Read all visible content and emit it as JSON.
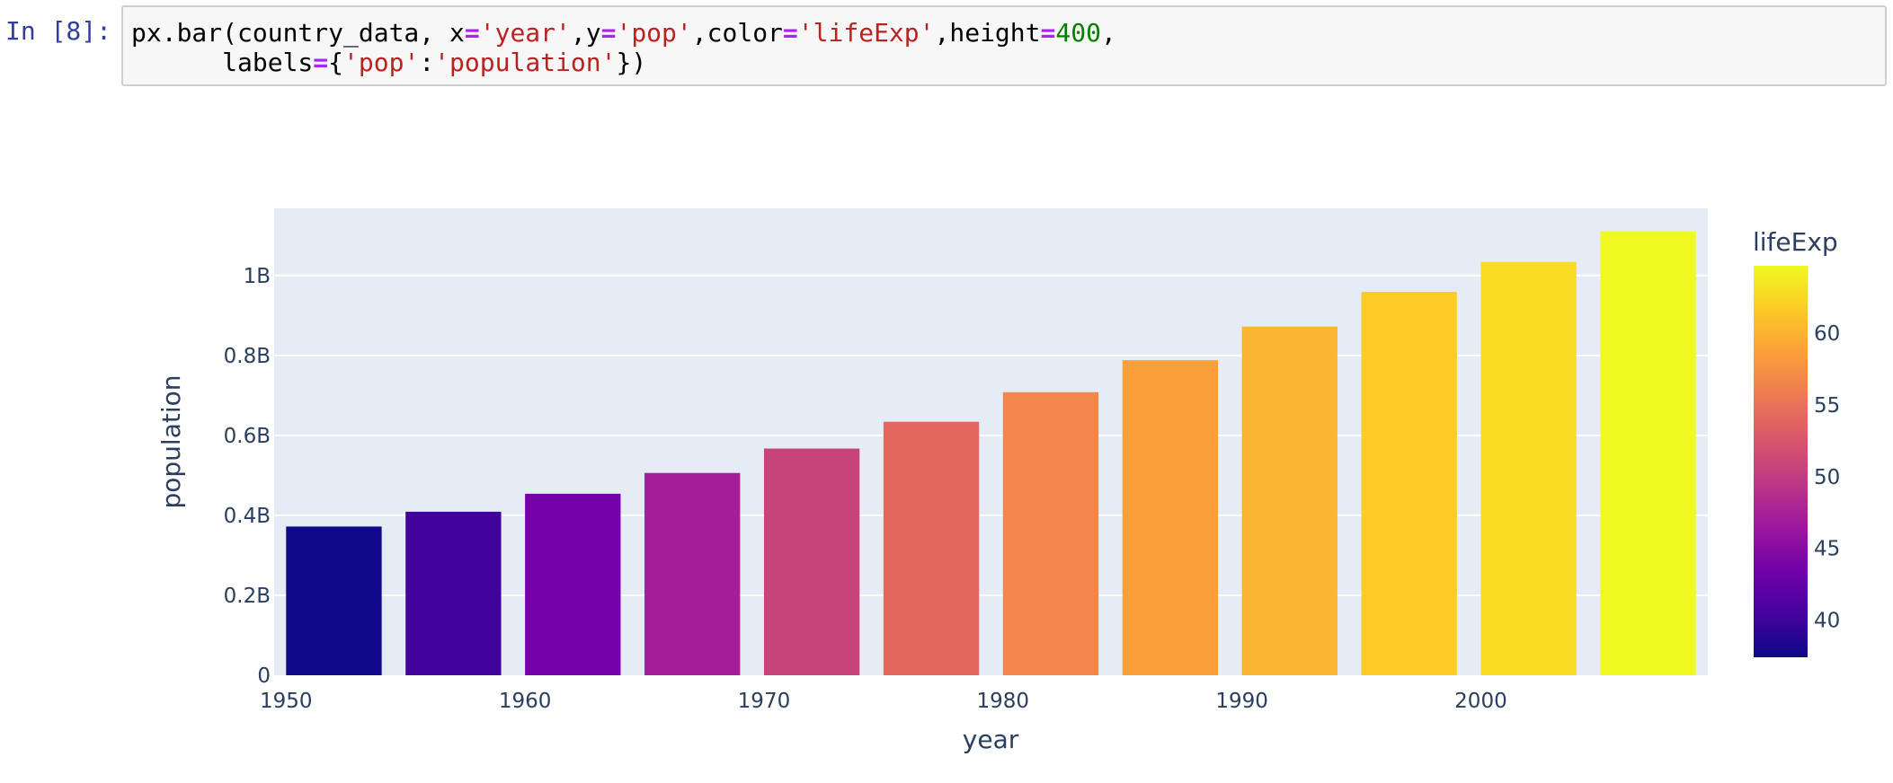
{
  "cell": {
    "prompt": "In [8]:",
    "code_line1": [
      {
        "t": "px.bar(country_data, x",
        "c": "plain"
      },
      {
        "t": "=",
        "c": "op"
      },
      {
        "t": "'year'",
        "c": "str"
      },
      {
        "t": ",y",
        "c": "plain"
      },
      {
        "t": "=",
        "c": "op"
      },
      {
        "t": "'pop'",
        "c": "str"
      },
      {
        "t": ",color",
        "c": "plain"
      },
      {
        "t": "=",
        "c": "op"
      },
      {
        "t": "'lifeExp'",
        "c": "str"
      },
      {
        "t": ",height",
        "c": "plain"
      },
      {
        "t": "=",
        "c": "op"
      },
      {
        "t": "400",
        "c": "num"
      },
      {
        "t": ",",
        "c": "plain"
      }
    ],
    "code_line2": [
      {
        "t": "      labels",
        "c": "plain"
      },
      {
        "t": "=",
        "c": "op"
      },
      {
        "t": "{",
        "c": "plain"
      },
      {
        "t": "'pop'",
        "c": "str"
      },
      {
        "t": ":",
        "c": "plain"
      },
      {
        "t": "'population'",
        "c": "str"
      },
      {
        "t": "})",
        "c": "plain"
      }
    ]
  },
  "chart_data": {
    "type": "bar",
    "xlabel": "year",
    "ylabel": "population",
    "color_label": "lifeExp",
    "x": [
      1952,
      1957,
      1962,
      1967,
      1972,
      1977,
      1982,
      1987,
      1992,
      1997,
      2002,
      2007
    ],
    "values": [
      372000000,
      409000000,
      454000000,
      506000000,
      567000000,
      634000000,
      708000000,
      788000000,
      872000000,
      959000000,
      1034000000,
      1110000000
    ],
    "color_values": [
      37.4,
      40.2,
      43.6,
      47.2,
      50.7,
      54.2,
      56.6,
      58.6,
      60.2,
      61.8,
      62.9,
      64.7
    ],
    "x_ticks": [
      "1950",
      "1960",
      "1970",
      "1980",
      "1990",
      "2000"
    ],
    "x_tick_values": [
      1950,
      1960,
      1970,
      1980,
      1990,
      2000
    ],
    "y_ticks": [
      "0",
      "0.2B",
      "0.4B",
      "0.6B",
      "0.8B",
      "1B"
    ],
    "y_tick_values": [
      0,
      200000000,
      400000000,
      600000000,
      800000000,
      1000000000
    ],
    "xlim": [
      1949.5,
      2009.5
    ],
    "ylim": [
      0,
      1168000000
    ],
    "colorbar_ticks": [
      "40",
      "45",
      "50",
      "55",
      "60"
    ],
    "colorbar_tick_values": [
      40,
      45,
      50,
      55,
      60
    ],
    "colorbar_range": [
      37.4,
      64.7
    ],
    "colorscale": [
      "#0d0887",
      "#46039f",
      "#7201a8",
      "#9c179e",
      "#bd3786",
      "#d8576b",
      "#ed7953",
      "#fb9f3a",
      "#fdca26",
      "#f0f921"
    ],
    "grid": true,
    "plot_bg": "#e5ecf6"
  }
}
